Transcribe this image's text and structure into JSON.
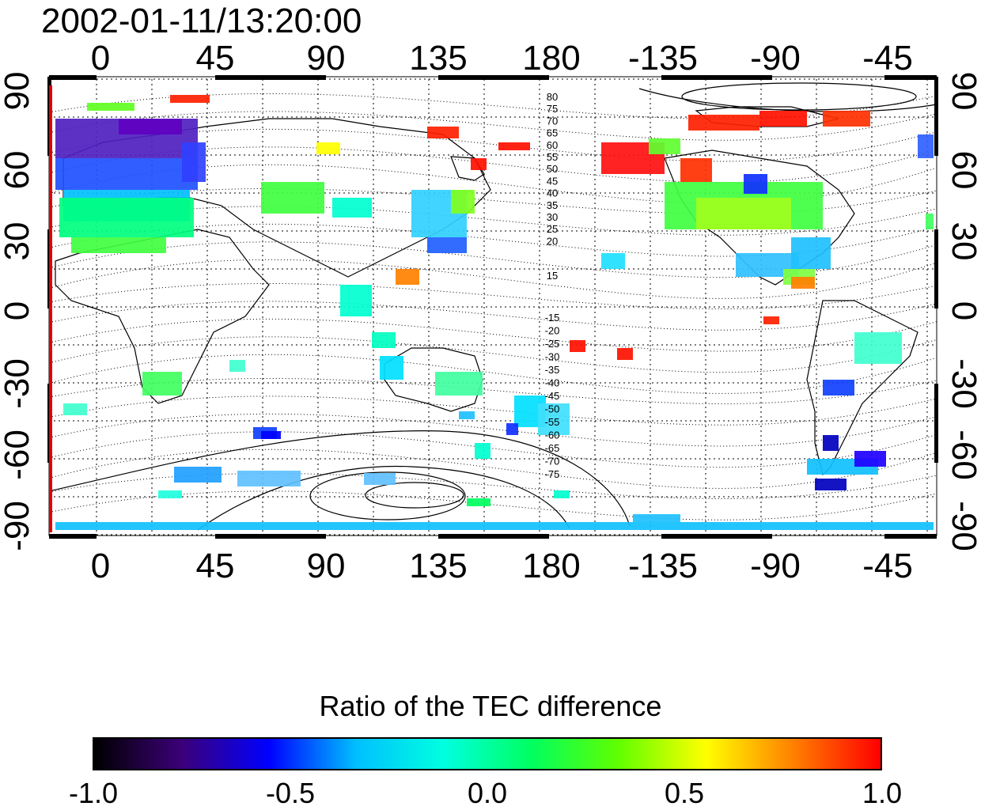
{
  "timestamp": "2002-01-11/13:20:00",
  "axes": {
    "x_top_labels": [
      "0",
      "45",
      "90",
      "135",
      "180",
      "-135",
      "-90",
      "-45"
    ],
    "x_bottom_labels": [
      "0",
      "45",
      "90",
      "135",
      "180",
      "-135",
      "-90",
      "-45"
    ],
    "y_left_labels": [
      "90",
      "60",
      "30",
      "0",
      "-30",
      "-60",
      "-90"
    ],
    "y_right_labels": [
      "90",
      "60",
      "30",
      "0",
      "-30",
      "-60",
      "-90"
    ]
  },
  "contour_labels": {
    "north": [
      "80",
      "75",
      "70",
      "65",
      "60",
      "55",
      "50",
      "45",
      "40",
      "35",
      "30",
      "25",
      "20",
      "15"
    ],
    "south": [
      "-15",
      "-20",
      "-25",
      "-30",
      "-35",
      "-40",
      "-45",
      "-50",
      "-55",
      "-60",
      "-65",
      "-70",
      "-75"
    ]
  },
  "colorbar": {
    "title": "Ratio of the TEC difference",
    "ticks": [
      "-1.0",
      "-0.5",
      "0.0",
      "0.5",
      "1.0"
    ],
    "range": [
      -1.0,
      1.0
    ],
    "colors": [
      "#000000",
      "#3c0078",
      "#0000ff",
      "#00c0ff",
      "#00ffe0",
      "#00ff60",
      "#60ff00",
      "#ffff00",
      "#ff8000",
      "#ff0000"
    ]
  },
  "colors": {
    "terminator_line": "#e00000",
    "coastline": "#000000",
    "frame": "#000000"
  }
}
